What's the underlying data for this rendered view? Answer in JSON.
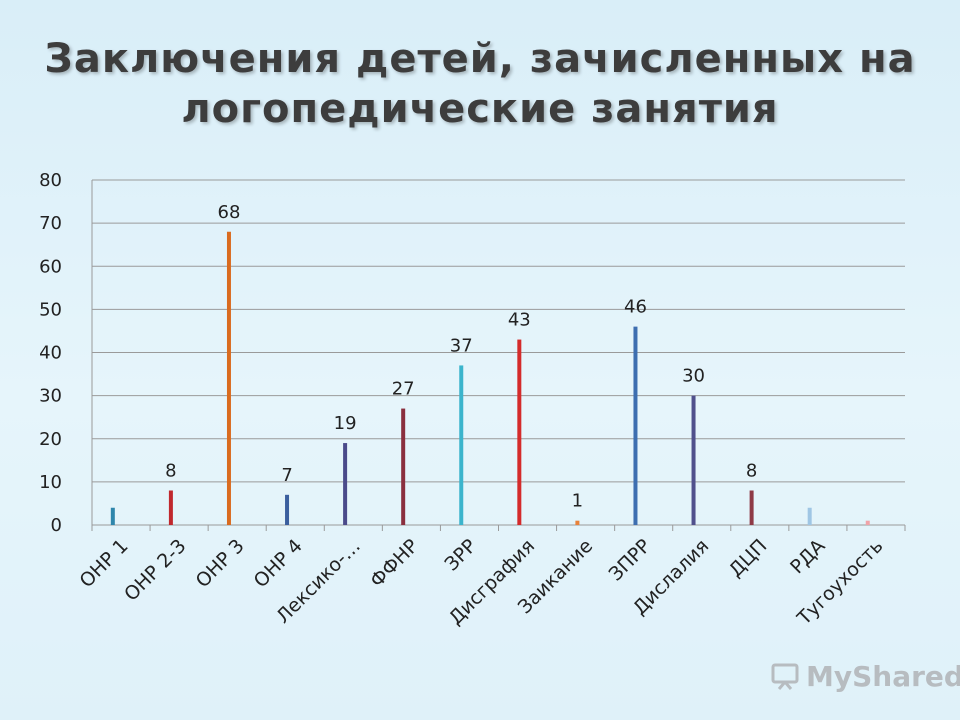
{
  "title": {
    "line1": "Заключения детей, зачисленных на",
    "line2": "логопедические занятия"
  },
  "watermark": "MyShared",
  "chart_data": {
    "type": "bar",
    "categories": [
      "ОНР 1",
      "ОНР 2-3",
      "ОНР 3",
      "ОНР 4",
      "Лексико-…",
      "ФФНР",
      "ЗРР",
      "Дисграфия",
      "Заикание",
      "ЗПРР",
      "Дислалия",
      "ДЦП",
      "РДА",
      "Тугоухость"
    ],
    "values": [
      4,
      8,
      68,
      7,
      19,
      27,
      37,
      43,
      1,
      46,
      30,
      8,
      4,
      1
    ],
    "data_labels": [
      "",
      "8",
      "68",
      "7",
      "19",
      "27",
      "37",
      "43",
      "1",
      "46",
      "30",
      "8",
      "",
      ""
    ],
    "colors": [
      "#2e86ab",
      "#c0282d",
      "#d96b1f",
      "#3a5f9e",
      "#4a4a8a",
      "#8a2f3e",
      "#3bb4cc",
      "#d42b2b",
      "#e8823a",
      "#3d6eb0",
      "#50508c",
      "#8e3a46",
      "#9fc6e4",
      "#f0a3a8"
    ],
    "ylim": [
      0,
      80
    ],
    "yticks": [
      "0",
      "10",
      "20",
      "30",
      "40",
      "50",
      "60",
      "70",
      "80"
    ],
    "grid": true
  }
}
